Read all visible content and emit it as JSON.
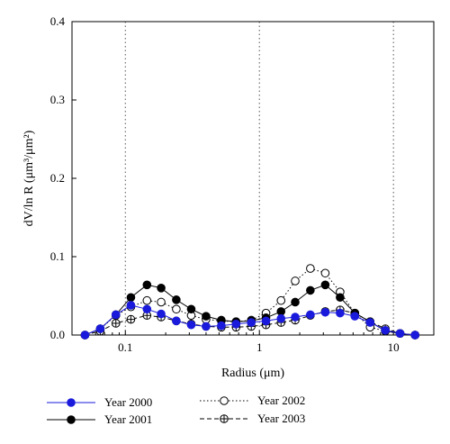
{
  "chart_data": {
    "type": "line",
    "xscale": "log",
    "xlim": [
      0.04,
      20
    ],
    "ylim": [
      0,
      0.4
    ],
    "xticks": [
      0.1,
      1,
      10
    ],
    "xtick_labels": [
      "0.1",
      "1",
      "10"
    ],
    "yticks": [
      0.0,
      0.1,
      0.2,
      0.3,
      0.4
    ],
    "ytick_labels": [
      "0.0",
      "0.1",
      "0.2",
      "0.3",
      "0.4"
    ],
    "vertical_gridlines": [
      0.1,
      1,
      10
    ],
    "xlabel": "Radius (μm)",
    "ylabel": "dV/ln R (μm³/μm²)",
    "legend_position": "below",
    "x": [
      0.05,
      0.065,
      0.085,
      0.11,
      0.145,
      0.185,
      0.24,
      0.31,
      0.4,
      0.52,
      0.67,
      0.87,
      1.12,
      1.45,
      1.85,
      2.4,
      3.1,
      4.0,
      5.15,
      6.7,
      8.7,
      11.2,
      14.5
    ],
    "series": [
      {
        "name": "Year 2000",
        "color": "#1a1adc",
        "marker": "filled-circle",
        "line": "solid",
        "values": [
          0.0,
          0.008,
          0.026,
          0.038,
          0.033,
          0.027,
          0.018,
          0.013,
          0.011,
          0.012,
          0.014,
          0.016,
          0.018,
          0.021,
          0.023,
          0.026,
          0.029,
          0.028,
          0.024,
          0.016,
          0.006,
          0.002,
          0.0
        ]
      },
      {
        "name": "Year 2001",
        "color": "#000000",
        "marker": "filled-circle",
        "line": "solid",
        "values": [
          0.0,
          0.008,
          0.026,
          0.048,
          0.064,
          0.06,
          0.045,
          0.033,
          0.024,
          0.019,
          0.017,
          0.018,
          0.022,
          0.03,
          0.042,
          0.057,
          0.064,
          0.048,
          0.028,
          0.017,
          0.005,
          0.002,
          0.0
        ]
      },
      {
        "name": "Year 2002",
        "color": "#000000",
        "marker": "open-circle",
        "line": "dotted",
        "values": [
          0.0,
          0.008,
          0.025,
          0.036,
          0.044,
          0.042,
          0.033,
          0.025,
          0.02,
          0.018,
          0.017,
          0.019,
          0.028,
          0.044,
          0.069,
          0.085,
          0.079,
          0.055,
          0.028,
          0.01,
          0.005,
          0.002,
          0.0
        ]
      },
      {
        "name": "Year 2003",
        "color": "#000000",
        "marker": "crossed-circle",
        "line": "dashed",
        "values": [
          0.0,
          0.005,
          0.015,
          0.02,
          0.025,
          0.023,
          0.018,
          0.014,
          0.011,
          0.01,
          0.01,
          0.011,
          0.013,
          0.016,
          0.019,
          0.025,
          0.03,
          0.032,
          0.028,
          0.017,
          0.008,
          0.002,
          0.0
        ]
      }
    ]
  }
}
